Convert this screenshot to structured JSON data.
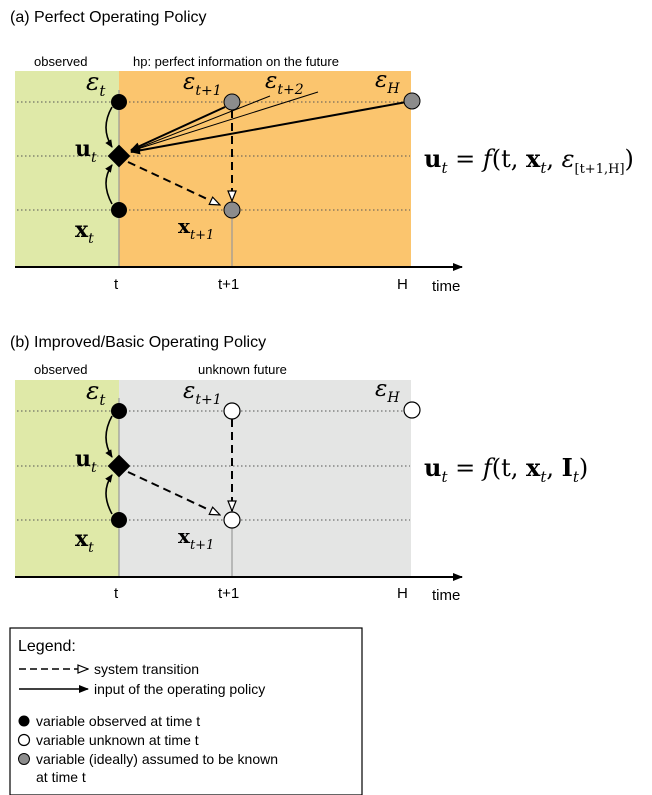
{
  "panel_a": {
    "title": "(a) Perfect Operating Policy",
    "observed_label": "observed",
    "region_label": "hp: perfect information on the future",
    "formula_lhs": "u",
    "formula_lhs_sub": "t",
    "formula_eq": " = ",
    "formula_func": "f",
    "formula_args": "(t, ",
    "formula_x": "x",
    "formula_x_sub": "t",
    "formula_comma": ", ",
    "formula_eps": "ε",
    "formula_eps_sub": "[t+1,H]",
    "formula_close": ")"
  },
  "panel_b": {
    "title": "(b) Improved/Basic Operating Policy",
    "observed_label": "observed",
    "region_label": "unknown future",
    "formula_lhs": "u",
    "formula_lhs_sub": "t",
    "formula_eq": " = ",
    "formula_func": "f",
    "formula_args": "(t, ",
    "formula_x": "x",
    "formula_x_sub": "t",
    "formula_comma": ", ",
    "formula_I": "I",
    "formula_I_sub": "t",
    "formula_close": ")"
  },
  "nodes": {
    "eps": "ε",
    "sub_t": "t",
    "sub_t1": "t+1",
    "sub_t2": "t+2",
    "sub_H": "H",
    "u": "u",
    "x": "x"
  },
  "axis": {
    "tick_t": "t",
    "tick_t1": "t+1",
    "tick_H": "H",
    "label": "time"
  },
  "legend": {
    "title": "Legend:",
    "dashed": "system transition",
    "solid": "input of the operating policy",
    "black": "variable observed at time t",
    "white": "variable unknown at time t",
    "gray_line1": "variable (ideally) assumed to be known",
    "gray_line2": "at time t"
  },
  "colors": {
    "observed_bg": "#dfe9a8",
    "future_known_bg": "#fbc56e",
    "future_unknown_bg": "#e4e5e4",
    "gray_node": "#8c8c8c",
    "black_node": "#000000"
  }
}
